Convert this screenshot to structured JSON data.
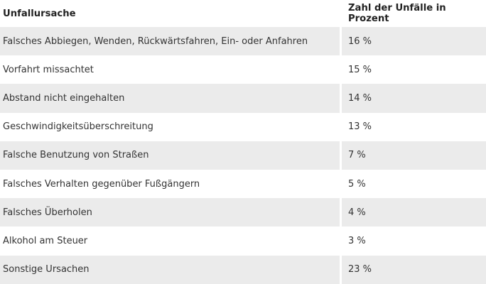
{
  "table": {
    "headers": [
      "Unfallursache",
      "Zahl der Unfälle in Prozent"
    ],
    "rows": [
      [
        "Falsches Abbiegen, Wenden, Rückwärtsfahren, Ein- oder Anfahren",
        "16 %"
      ],
      [
        "Vorfahrt missachtet",
        "15 %"
      ],
      [
        "Abstand nicht eingehalten",
        "14 %"
      ],
      [
        "Geschwindigkeitsüberschreitung",
        "13 %"
      ],
      [
        "Falsche Benutzung von Straßen",
        "7 %"
      ],
      [
        "Falsches Verhalten gegenüber Fußgängern",
        "5 %"
      ],
      [
        "Falsches Überholen",
        "4 %"
      ],
      [
        "Alkohol am Steuer",
        "3 %"
      ],
      [
        "Sonstige Ursachen",
        "23 %"
      ]
    ]
  },
  "colors": {
    "shaded_row": "#ebebeb",
    "plain_row": "#ffffff",
    "text": "#333333"
  }
}
